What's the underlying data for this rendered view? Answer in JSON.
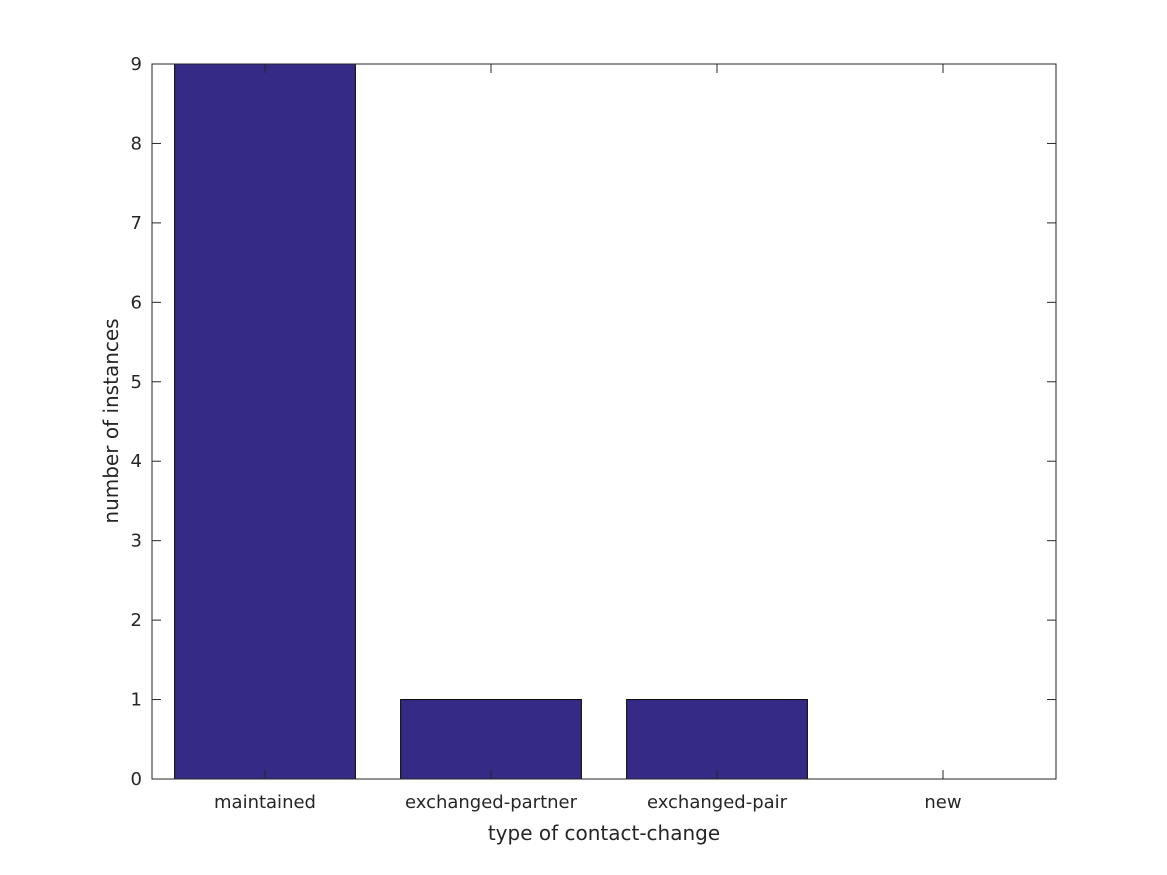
{
  "chart_data": {
    "type": "bar",
    "title": "",
    "xlabel": "type of contact-change",
    "ylabel": "number of instances",
    "categories": [
      "maintained",
      "exchanged-partner",
      "exchanged-pair",
      "new"
    ],
    "values": [
      9,
      1,
      1,
      0
    ],
    "ylim": [
      0,
      9
    ],
    "yticks": [
      "0",
      "1",
      "2",
      "3",
      "4",
      "5",
      "6",
      "7",
      "8",
      "9"
    ],
    "grid": false,
    "bar_color": "#352a86",
    "bar_edge_color": "#000000",
    "axis_color": "#262626"
  }
}
